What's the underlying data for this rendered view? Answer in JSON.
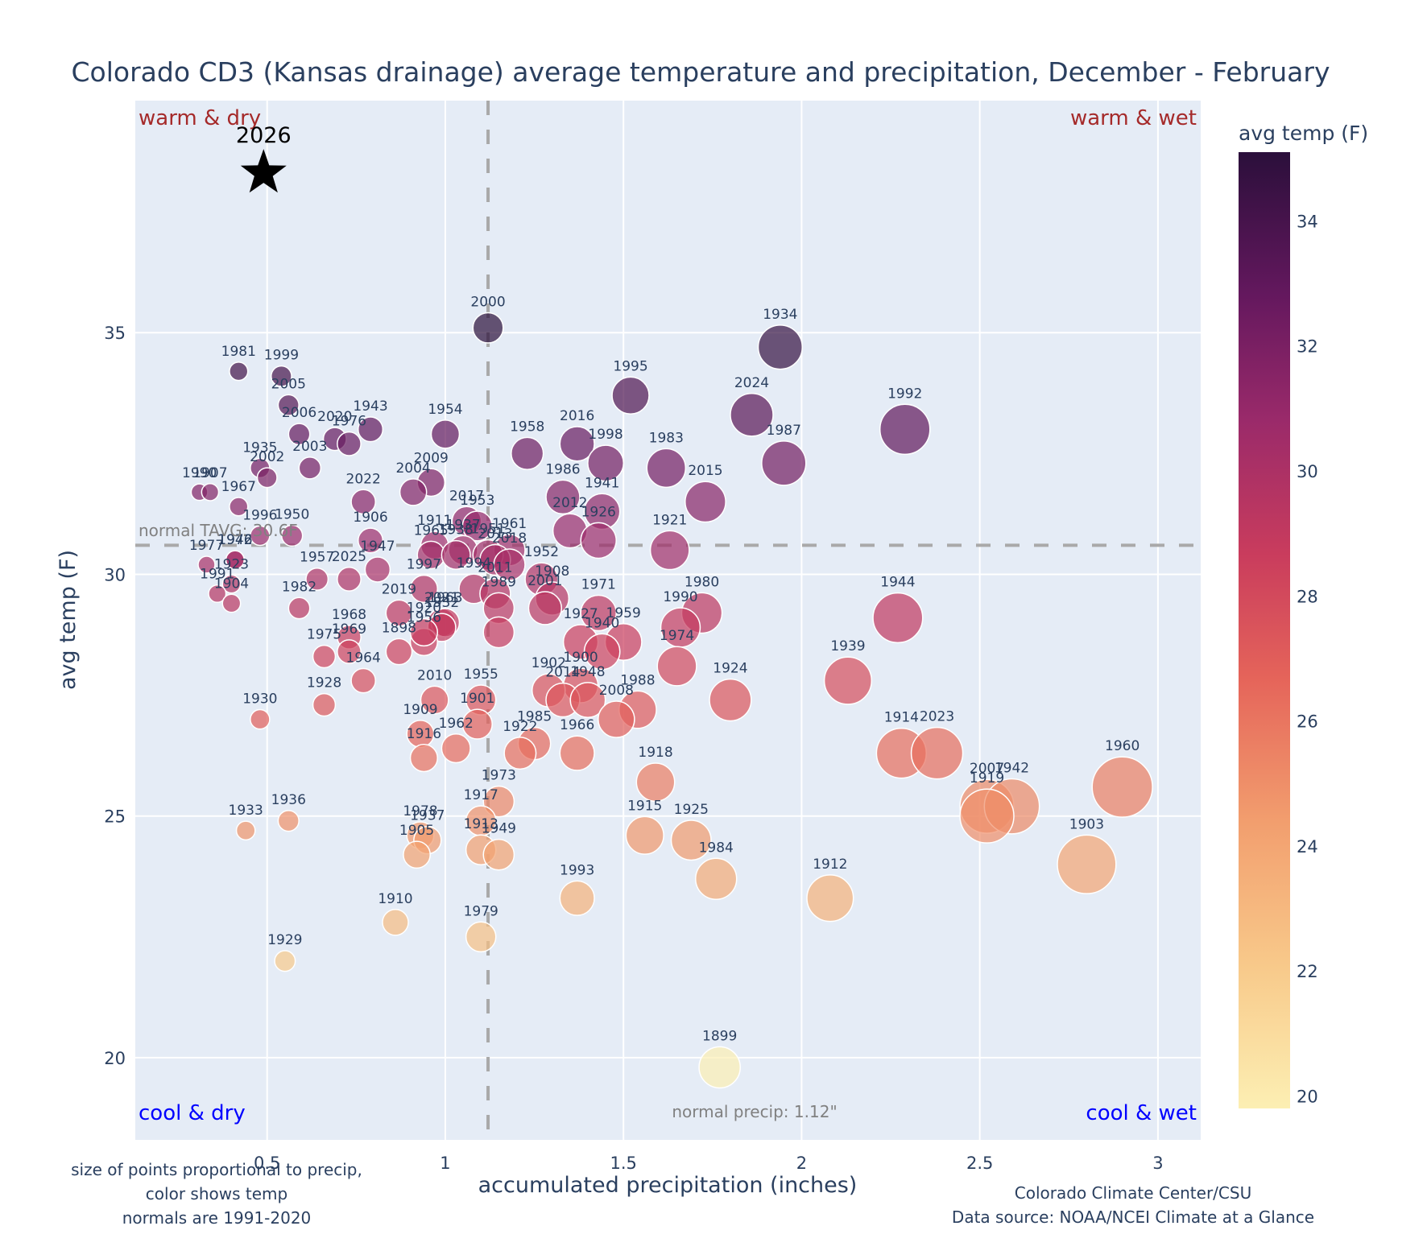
{
  "chart_data": {
    "type": "scatter",
    "title": "Colorado CD3 (Kansas drainage) average temperature and precipitation, December - February",
    "xlabel": "accumulated precipitation (inches)",
    "ylabel": "avg temp (F)",
    "xlim": [
      0.13,
      3.12
    ],
    "ylim": [
      18.3,
      39.8
    ],
    "xticks": [
      0.5,
      1,
      1.5,
      2,
      2.5,
      3
    ],
    "xtick_labels": [
      "0.5",
      "1",
      "1.5",
      "2",
      "2.5",
      "3"
    ],
    "yticks": [
      20,
      25,
      30,
      35
    ],
    "ytick_labels": [
      "20",
      "25",
      "30",
      "35"
    ],
    "grid": true,
    "colorbar": {
      "title": "avg temp (F)",
      "range": [
        19.8,
        35.1
      ],
      "ticks": [
        20,
        22,
        24,
        26,
        28,
        30,
        32,
        34
      ],
      "tick_labels": [
        "20",
        "22",
        "24",
        "26",
        "28",
        "30",
        "32",
        "34"
      ],
      "colorscale": "magma-like (light yellow to dark purple)"
    },
    "normals": {
      "temp": 30.6,
      "temp_label": "normal TAVG: 30.6F",
      "precip": 1.12,
      "precip_label": "normal precip: 1.12\""
    },
    "quadrant_labels": {
      "top_left": "warm & dry",
      "top_right": "warm & wet",
      "bottom_left": "cool & dry",
      "bottom_right": "cool & wet"
    },
    "highlight": {
      "year": "2026",
      "precip": 0.49,
      "temp": 38.3,
      "marker": "star"
    },
    "notes": {
      "left": [
        "size of points proportional to precip,",
        "color shows temp",
        "normals are 1991-2020"
      ],
      "right": [
        "Colorado Climate Center/CSU",
        "Data source: NOAA/NCEI Climate at a Glance"
      ]
    },
    "points": [
      {
        "year": "2000",
        "x": 1.12,
        "y": 35.1
      },
      {
        "year": "1934",
        "x": 1.94,
        "y": 34.7
      },
      {
        "year": "1981",
        "x": 0.42,
        "y": 34.2
      },
      {
        "year": "1999",
        "x": 0.54,
        "y": 34.1
      },
      {
        "year": "1995",
        "x": 1.52,
        "y": 33.7
      },
      {
        "year": "2005",
        "x": 0.56,
        "y": 33.5
      },
      {
        "year": "2024",
        "x": 1.86,
        "y": 33.3
      },
      {
        "year": "1992",
        "x": 2.29,
        "y": 33.0
      },
      {
        "year": "1954",
        "x": 1.0,
        "y": 32.9
      },
      {
        "year": "1943",
        "x": 0.79,
        "y": 33.0
      },
      {
        "year": "2006",
        "x": 0.59,
        "y": 32.9
      },
      {
        "year": "2020",
        "x": 0.69,
        "y": 32.8
      },
      {
        "year": "1976",
        "x": 0.73,
        "y": 32.7
      },
      {
        "year": "2016",
        "x": 1.37,
        "y": 32.7
      },
      {
        "year": "1958",
        "x": 1.23,
        "y": 32.5
      },
      {
        "year": "1998",
        "x": 1.45,
        "y": 32.3
      },
      {
        "year": "1987",
        "x": 1.95,
        "y": 32.3
      },
      {
        "year": "1983",
        "x": 1.62,
        "y": 32.2
      },
      {
        "year": "2003",
        "x": 0.62,
        "y": 32.2
      },
      {
        "year": "1935",
        "x": 0.48,
        "y": 32.2
      },
      {
        "year": "2002",
        "x": 0.5,
        "y": 32.0
      },
      {
        "year": "2009",
        "x": 0.96,
        "y": 31.9
      },
      {
        "year": "1990",
        "x": 0.31,
        "y": 31.7
      },
      {
        "year": "1907",
        "x": 0.34,
        "y": 31.7
      },
      {
        "year": "2004",
        "x": 0.91,
        "y": 31.7
      },
      {
        "year": "1986",
        "x": 1.33,
        "y": 31.6
      },
      {
        "year": "2015",
        "x": 1.73,
        "y": 31.5
      },
      {
        "year": "2022",
        "x": 0.77,
        "y": 31.5
      },
      {
        "year": "1967",
        "x": 0.42,
        "y": 31.4
      },
      {
        "year": "1941",
        "x": 1.44,
        "y": 31.3
      },
      {
        "year": "2017",
        "x": 1.06,
        "y": 31.1
      },
      {
        "year": "1953",
        "x": 1.09,
        "y": 31.0
      },
      {
        "year": "2012",
        "x": 1.35,
        "y": 30.9
      },
      {
        "year": "1996",
        "x": 0.48,
        "y": 30.8
      },
      {
        "year": "1950",
        "x": 0.57,
        "y": 30.8
      },
      {
        "year": "1906",
        "x": 0.79,
        "y": 30.7
      },
      {
        "year": "1926",
        "x": 1.43,
        "y": 30.7
      },
      {
        "year": "1911",
        "x": 0.97,
        "y": 30.6
      },
      {
        "year": "1961",
        "x": 1.18,
        "y": 30.5
      },
      {
        "year": "1921",
        "x": 1.63,
        "y": 30.5
      },
      {
        "year": "1965",
        "x": 0.96,
        "y": 30.4
      },
      {
        "year": "1939b",
        "label": "1937",
        "x": 1.05,
        "y": 30.5
      },
      {
        "year": "1951",
        "x": 1.12,
        "y": 30.4
      },
      {
        "year": "1938",
        "x": 1.03,
        "y": 30.4
      },
      {
        "year": "2013",
        "x": 1.14,
        "y": 30.3
      },
      {
        "year": "2018",
        "x": 1.18,
        "y": 30.2
      },
      {
        "year": "1972",
        "x": 0.41,
        "y": 30.3
      },
      {
        "year": "1977",
        "x": 0.33,
        "y": 30.2
      },
      {
        "year": "1946",
        "x": 0.41,
        "y": 30.3
      },
      {
        "year": "1947",
        "x": 0.81,
        "y": 30.1
      },
      {
        "year": "1997",
        "x": 0.94,
        "y": 29.7
      },
      {
        "year": "1994",
        "x": 1.08,
        "y": 29.7
      },
      {
        "year": "1957",
        "x": 0.64,
        "y": 29.9
      },
      {
        "year": "2025",
        "x": 0.73,
        "y": 29.9
      },
      {
        "year": "2011",
        "x": 1.14,
        "y": 29.6
      },
      {
        "year": "1952",
        "x": 1.27,
        "y": 29.9
      },
      {
        "year": "1908",
        "x": 1.3,
        "y": 29.5
      },
      {
        "year": "1923",
        "x": 0.4,
        "y": 29.8
      },
      {
        "year": "1991",
        "x": 0.36,
        "y": 29.6
      },
      {
        "year": "1904",
        "x": 0.4,
        "y": 29.4
      },
      {
        "year": "1982",
        "x": 0.59,
        "y": 29.3
      },
      {
        "year": "2019",
        "x": 0.87,
        "y": 29.2
      },
      {
        "year": "2021",
        "x": 0.99,
        "y": 29.0
      },
      {
        "year": "1963",
        "x": 1.0,
        "y": 29.0
      },
      {
        "year": "1932",
        "x": 0.99,
        "y": 28.9
      },
      {
        "year": "1989",
        "x": 1.15,
        "y": 29.3
      },
      {
        "year": "2001",
        "x": 1.28,
        "y": 29.3
      },
      {
        "year": "1971",
        "x": 1.43,
        "y": 29.2
      },
      {
        "year": "1944",
        "x": 2.27,
        "y": 29.1
      },
      {
        "year": "1980",
        "x": 1.72,
        "y": 29.2
      },
      {
        "year": "1990b",
        "label": "1990",
        "x": 1.66,
        "y": 28.9
      },
      {
        "year": "1956",
        "x": 0.94,
        "y": 28.6
      },
      {
        "year": "1927",
        "x": 1.38,
        "y": 28.6
      },
      {
        "year": "1959",
        "x": 1.5,
        "y": 28.6
      },
      {
        "year": "1940",
        "x": 1.44,
        "y": 28.4
      },
      {
        "year": "1968",
        "x": 0.73,
        "y": 28.7
      },
      {
        "year": "1969",
        "x": 0.73,
        "y": 28.4
      },
      {
        "year": "1975",
        "x": 0.66,
        "y": 28.3
      },
      {
        "year": "1920",
        "x": 0.94,
        "y": 28.8
      },
      {
        "year": "1989b",
        "label": "",
        "x": 1.15,
        "y": 28.8
      },
      {
        "year": "1898",
        "x": 0.87,
        "y": 28.4
      },
      {
        "year": "1964",
        "x": 0.77,
        "y": 27.8
      },
      {
        "year": "1974",
        "x": 1.65,
        "y": 28.1
      },
      {
        "year": "1900",
        "x": 1.38,
        "y": 27.7
      },
      {
        "year": "1902",
        "x": 1.29,
        "y": 27.6
      },
      {
        "year": "2014",
        "x": 1.33,
        "y": 27.4
      },
      {
        "year": "1948",
        "x": 1.4,
        "y": 27.4
      },
      {
        "year": "1939",
        "x": 2.13,
        "y": 27.8
      },
      {
        "year": "1928",
        "x": 0.66,
        "y": 27.3
      },
      {
        "year": "2010",
        "x": 0.97,
        "y": 27.4
      },
      {
        "year": "1955",
        "x": 1.1,
        "y": 27.4
      },
      {
        "year": "1924",
        "x": 1.8,
        "y": 27.4
      },
      {
        "year": "1988",
        "x": 1.54,
        "y": 27.2
      },
      {
        "year": "2008",
        "x": 1.48,
        "y": 27.0
      },
      {
        "year": "1930",
        "x": 0.48,
        "y": 27.0
      },
      {
        "year": "1901",
        "x": 1.09,
        "y": 26.9
      },
      {
        "year": "1909",
        "x": 0.93,
        "y": 26.7
      },
      {
        "year": "1962",
        "x": 1.03,
        "y": 26.4
      },
      {
        "year": "1985",
        "x": 1.25,
        "y": 26.5
      },
      {
        "year": "1922",
        "x": 1.21,
        "y": 26.3
      },
      {
        "year": "1966",
        "x": 1.37,
        "y": 26.3
      },
      {
        "year": "1916",
        "x": 0.94,
        "y": 26.2
      },
      {
        "year": "1914",
        "x": 2.28,
        "y": 26.3
      },
      {
        "year": "2023",
        "x": 2.38,
        "y": 26.3
      },
      {
        "year": "1918",
        "x": 1.59,
        "y": 25.7
      },
      {
        "year": "1960",
        "x": 2.9,
        "y": 25.6
      },
      {
        "year": "1973",
        "x": 1.15,
        "y": 25.3
      },
      {
        "year": "2007",
        "x": 2.52,
        "y": 25.2
      },
      {
        "year": "1942",
        "x": 2.59,
        "y": 25.2
      },
      {
        "year": "1919",
        "x": 2.52,
        "y": 25.0
      },
      {
        "year": "1917",
        "x": 1.1,
        "y": 24.9
      },
      {
        "year": "1936",
        "x": 0.56,
        "y": 24.9
      },
      {
        "year": "1933",
        "x": 0.44,
        "y": 24.7
      },
      {
        "year": "1978",
        "x": 0.93,
        "y": 24.6
      },
      {
        "year": "1937",
        "x": 0.95,
        "y": 24.5
      },
      {
        "year": "1915",
        "x": 1.56,
        "y": 24.6
      },
      {
        "year": "1925",
        "x": 1.69,
        "y": 24.5
      },
      {
        "year": "1913",
        "x": 1.1,
        "y": 24.3
      },
      {
        "year": "1949",
        "x": 1.15,
        "y": 24.2
      },
      {
        "year": "1905",
        "x": 0.92,
        "y": 24.2
      },
      {
        "year": "1903",
        "x": 2.8,
        "y": 24.0
      },
      {
        "year": "1984",
        "x": 1.76,
        "y": 23.7
      },
      {
        "year": "1993",
        "x": 1.37,
        "y": 23.3
      },
      {
        "year": "1912",
        "x": 2.08,
        "y": 23.3
      },
      {
        "year": "1910",
        "x": 0.86,
        "y": 22.8
      },
      {
        "year": "1979",
        "x": 1.1,
        "y": 22.5
      },
      {
        "year": "1929",
        "x": 0.55,
        "y": 22.0
      },
      {
        "year": "1899",
        "x": 1.77,
        "y": 19.8
      }
    ]
  }
}
